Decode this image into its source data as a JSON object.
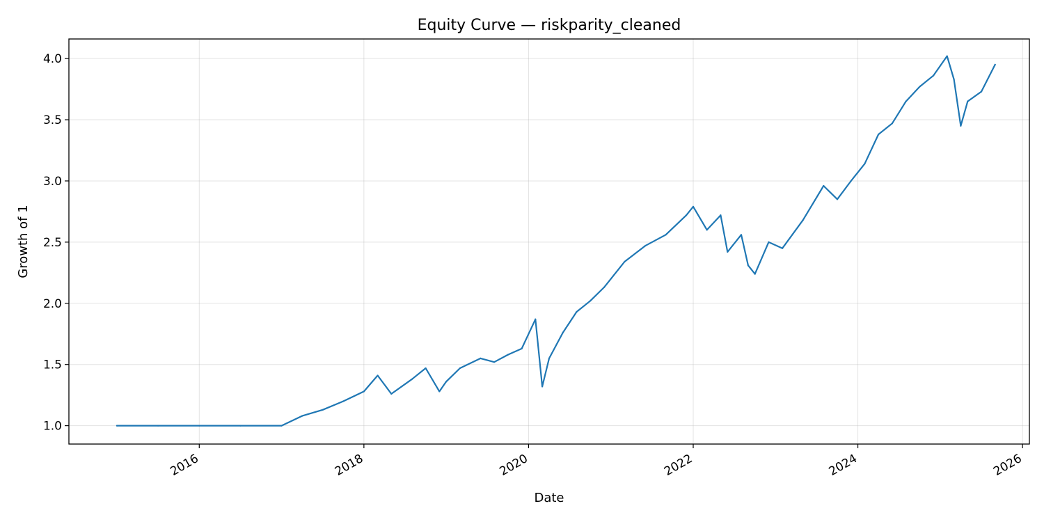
{
  "chart_data": {
    "type": "line",
    "title": "Equity Curve — riskparity_cleaned",
    "xlabel": "Date",
    "ylabel": "Growth of 1",
    "x_ticks": [
      "2016",
      "2018",
      "2020",
      "2022",
      "2024",
      "2026"
    ],
    "y_ticks": [
      "1.0",
      "1.5",
      "2.0",
      "2.5",
      "3.0",
      "3.5",
      "4.0"
    ],
    "xlim": [
      "2014-06",
      "2026-02"
    ],
    "ylim": [
      0.85,
      4.16
    ],
    "grid": true,
    "line_color": "#1f77b4",
    "series": [
      {
        "x": [
          "2015-01",
          "2015-07",
          "2016-01",
          "2016-07",
          "2017-01",
          "2017-04",
          "2017-07",
          "2017-10",
          "2018-01",
          "2018-03",
          "2018-05",
          "2018-08",
          "2018-10",
          "2018-12",
          "2019-01",
          "2019-03",
          "2019-06",
          "2019-08",
          "2019-10",
          "2019-12",
          "2020-02",
          "2020-03",
          "2020-04",
          "2020-06",
          "2020-08",
          "2020-10",
          "2020-12",
          "2021-03",
          "2021-06",
          "2021-09",
          "2021-12",
          "2022-01",
          "2022-03",
          "2022-05",
          "2022-06",
          "2022-08",
          "2022-09",
          "2022-10",
          "2022-12",
          "2023-02",
          "2023-05",
          "2023-08",
          "2023-10",
          "2023-12",
          "2024-02",
          "2024-04",
          "2024-06",
          "2024-08",
          "2024-10",
          "2024-12",
          "2025-02",
          "2025-03",
          "2025-04",
          "2025-05",
          "2025-07",
          "2025-09"
        ],
        "y": [
          1.0,
          1.0,
          1.0,
          1.0,
          1.0,
          1.08,
          1.13,
          1.2,
          1.28,
          1.41,
          1.26,
          1.38,
          1.47,
          1.28,
          1.36,
          1.47,
          1.55,
          1.52,
          1.58,
          1.63,
          1.87,
          1.32,
          1.55,
          1.76,
          1.93,
          2.02,
          2.13,
          2.34,
          2.47,
          2.56,
          2.72,
          2.79,
          2.6,
          2.72,
          2.42,
          2.56,
          2.31,
          2.24,
          2.5,
          2.45,
          2.68,
          2.96,
          2.85,
          3.0,
          3.14,
          3.38,
          3.47,
          3.65,
          3.77,
          3.86,
          4.02,
          3.83,
          3.45,
          3.65,
          3.73,
          3.95
        ]
      }
    ]
  }
}
